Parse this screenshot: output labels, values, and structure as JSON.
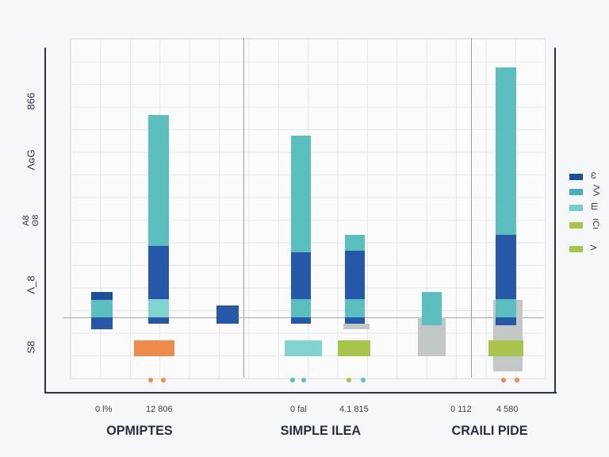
{
  "chart_data": {
    "type": "bar",
    "title": "",
    "ylim": [
      -2.2,
      8.8
    ],
    "y_tick_labels": [
      "S8",
      "Λ_8",
      "A8 Θ8",
      "ΛԍG",
      "866"
    ],
    "legend": {
      "placement": "right",
      "entries": [
        {
          "label": "ω",
          "color": "#1f4f9a"
        },
        {
          "label": "ΛΛ",
          "color": "#44b3b8"
        },
        {
          "label": "Ш",
          "color": "#72d0c8"
        },
        {
          "label": "ıCı",
          "color": "#a8c44a"
        },
        {
          "label": "Λ",
          "color": "#a8c44a"
        }
      ]
    },
    "groups": [
      {
        "name": "OPMIPTES",
        "labels": [
          "0 l%",
          "12 806"
        ]
      },
      {
        "name": "SIMPLE ILEA",
        "labels": [
          "0 fal",
          "4.1 815"
        ]
      },
      {
        "name": "CRAILI PIDE",
        "labels": [
          "0 112",
          "4 580"
        ]
      }
    ],
    "bars": [
      {
        "group": 0,
        "segments": [
          [
            0.55,
            0.8,
            "#1f4f9a"
          ],
          [
            0,
            0.55,
            "#5bbfc0"
          ],
          [
            -0.375,
            0,
            "#2558a8"
          ]
        ]
      },
      {
        "group": 0,
        "segments": [
          [
            2.25,
            6.375,
            "#5bbfc0"
          ],
          [
            0.575,
            2.25,
            "#2558a8"
          ],
          [
            0,
            0.575,
            "#7fd4d0"
          ],
          [
            -0.2,
            0,
            "#2558a8"
          ]
        ]
      },
      {
        "group": 0,
        "segments": [
          [
            -0.2,
            0.375,
            "#2558a8"
          ]
        ]
      },
      {
        "group": 0,
        "segments": [
          [
            -1.225,
            -0.725,
            "#f08a4b"
          ]
        ]
      },
      {
        "group": 1,
        "segments": [
          [
            2.05,
            5.725,
            "#5bbfc0"
          ],
          [
            0.575,
            2.05,
            "#2558a8"
          ],
          [
            0,
            0.575,
            "#5bbfc0"
          ],
          [
            -0.2,
            0,
            "#2558a8"
          ]
        ]
      },
      {
        "group": 1,
        "segments": [
          [
            -0.375,
            -0.2,
            "#c3c7c8"
          ],
          [
            2.1,
            2.6,
            "#5bbfc0"
          ],
          [
            0.575,
            2.1,
            "#2558a8"
          ],
          [
            0,
            0.575,
            "#5bbfc0"
          ],
          [
            -0.2,
            0,
            "#2558a8"
          ]
        ]
      },
      {
        "group": 1,
        "segments": [
          [
            -1.225,
            -0.725,
            "#7fd4d0"
          ]
        ]
      },
      {
        "group": 1,
        "segments": [
          [
            -1.225,
            -0.725,
            "#a8c44a"
          ]
        ]
      },
      {
        "group": 2,
        "segments": [
          [
            -1.225,
            0,
            "#c3c7c8"
          ],
          [
            -0.25,
            0.8,
            "#5bbfc0"
          ]
        ]
      },
      {
        "group": 2,
        "segments": [
          [
            -1.7,
            0.55,
            "#c3c7c8"
          ],
          [
            2.6,
            7.875,
            "#5bbfc0"
          ],
          [
            0.575,
            2.6,
            "#2558a8"
          ],
          [
            0,
            0.575,
            "#5bbfc0"
          ],
          [
            -0.25,
            0,
            "#2558a8"
          ]
        ]
      },
      {
        "group": 2,
        "segments": [
          [
            -1.225,
            -0.725,
            "#a8c44a"
          ]
        ]
      }
    ],
    "markers": [
      [
        "#f08a4b",
        "#f08a4b"
      ],
      [
        "#5bbfc0",
        "#5bbfc0"
      ],
      [
        "#a8c44a",
        "#5bbfc0"
      ],
      [
        "#f08a4b",
        "#f08a4b"
      ]
    ]
  }
}
